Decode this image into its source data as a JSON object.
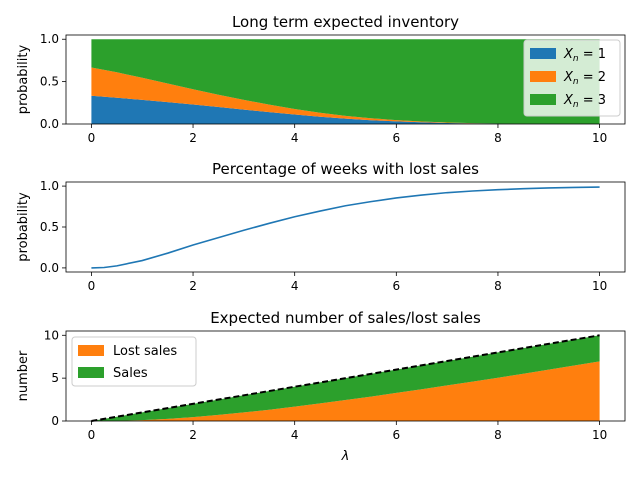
{
  "colors": {
    "blue": "#1f77b4",
    "orange": "#ff7f0e",
    "green": "#2ca02c",
    "black": "#000000"
  },
  "chart_data": [
    {
      "type": "area",
      "stacked": true,
      "title": "Long term expected inventory",
      "xlabel": "",
      "ylabel": "probability",
      "xlim": [
        -0.5,
        10.5
      ],
      "ylim": [
        0,
        1.05
      ],
      "xticks": [
        0,
        2,
        4,
        6,
        8,
        10
      ],
      "yticks": [
        0.0,
        0.5,
        1.0
      ],
      "ytick_labels": [
        "0.0",
        "0.5",
        "1.0"
      ],
      "legend": "top-right",
      "x": [
        0,
        0.5,
        1,
        1.5,
        2,
        2.5,
        3,
        3.5,
        4,
        4.5,
        5,
        5.5,
        6,
        6.5,
        7,
        7.5,
        8,
        8.5,
        9,
        9.5,
        10
      ],
      "series": [
        {
          "name": "X_n = 1",
          "legend_math": {
            "base": "X",
            "sub": "n",
            "rest": " = 1"
          },
          "color": "#1f77b4",
          "values": [
            0.333,
            0.31,
            0.285,
            0.258,
            0.23,
            0.2,
            0.17,
            0.14,
            0.112,
            0.085,
            0.063,
            0.045,
            0.031,
            0.02,
            0.012,
            0.007,
            0.004,
            0.002,
            0.001,
            0.0005,
            0.0003
          ]
        },
        {
          "name": "X_n = 2",
          "legend_math": {
            "base": "X",
            "sub": "n",
            "rest": " = 2"
          },
          "color": "#ff7f0e",
          "values": [
            0.333,
            0.3,
            0.26,
            0.22,
            0.18,
            0.145,
            0.115,
            0.088,
            0.065,
            0.047,
            0.033,
            0.023,
            0.015,
            0.01,
            0.006,
            0.004,
            0.002,
            0.001,
            0.0006,
            0.0003,
            0.0002
          ]
        },
        {
          "name": "X_n = 3",
          "legend_math": {
            "base": "X",
            "sub": "n",
            "rest": " = 3"
          },
          "color": "#2ca02c",
          "values": [
            0.334,
            0.39,
            0.455,
            0.522,
            0.59,
            0.655,
            0.715,
            0.772,
            0.823,
            0.868,
            0.904,
            0.932,
            0.954,
            0.97,
            0.982,
            0.989,
            0.994,
            0.997,
            0.9984,
            0.9992,
            0.9995
          ]
        }
      ]
    },
    {
      "type": "line",
      "title": "Percentage of weeks with lost sales",
      "xlabel": "",
      "ylabel": "probability",
      "xlim": [
        -0.5,
        10.5
      ],
      "ylim": [
        -0.05,
        1.05
      ],
      "xticks": [
        0,
        2,
        4,
        6,
        8,
        10
      ],
      "yticks": [
        0.0,
        0.5,
        1.0
      ],
      "ytick_labels": [
        "0.0",
        "0.5",
        "1.0"
      ],
      "x": [
        0,
        0.25,
        0.5,
        1,
        1.5,
        2,
        2.5,
        3,
        3.5,
        4,
        4.5,
        5,
        5.5,
        6,
        6.5,
        7,
        7.5,
        8,
        8.5,
        9,
        9.5,
        10
      ],
      "series": [
        {
          "name": "",
          "color": "#1f77b4",
          "values": [
            0.0,
            0.005,
            0.025,
            0.09,
            0.18,
            0.28,
            0.37,
            0.46,
            0.545,
            0.625,
            0.695,
            0.76,
            0.81,
            0.855,
            0.89,
            0.92,
            0.94,
            0.956,
            0.968,
            0.977,
            0.983,
            0.988
          ]
        }
      ]
    },
    {
      "type": "area",
      "stacked": true,
      "title": "Expected number of sales/lost sales",
      "xlabel": "λ",
      "ylabel": "number",
      "xlim": [
        -0.5,
        10.5
      ],
      "ylim": [
        0,
        10.5
      ],
      "xticks": [
        0,
        2,
        4,
        6,
        8,
        10
      ],
      "yticks": [
        0,
        5,
        10
      ],
      "ytick_labels": [
        "0",
        "5",
        "10"
      ],
      "legend": "top-left",
      "x": [
        0,
        0.5,
        1,
        1.5,
        2,
        2.5,
        3,
        3.5,
        4,
        4.5,
        5,
        5.5,
        6,
        6.5,
        7,
        7.5,
        8,
        8.5,
        9,
        9.5,
        10
      ],
      "series": [
        {
          "name": "Lost sales",
          "color": "#ff7f0e",
          "values": [
            0,
            0.02,
            0.1,
            0.25,
            0.45,
            0.72,
            1.0,
            1.32,
            1.68,
            2.05,
            2.45,
            2.85,
            3.28,
            3.7,
            4.15,
            4.6,
            5.05,
            5.52,
            6.0,
            6.48,
            6.95
          ]
        },
        {
          "name": "Sales",
          "color": "#2ca02c",
          "values": [
            0,
            0.48,
            0.9,
            1.25,
            1.55,
            1.78,
            2.0,
            2.18,
            2.32,
            2.45,
            2.55,
            2.65,
            2.72,
            2.8,
            2.85,
            2.9,
            2.95,
            2.98,
            3.0,
            3.02,
            3.05
          ]
        }
      ],
      "reference_line": {
        "name": "",
        "style": "dashed",
        "color": "#000000",
        "x": [
          0,
          10
        ],
        "y": [
          0,
          10
        ]
      }
    }
  ]
}
